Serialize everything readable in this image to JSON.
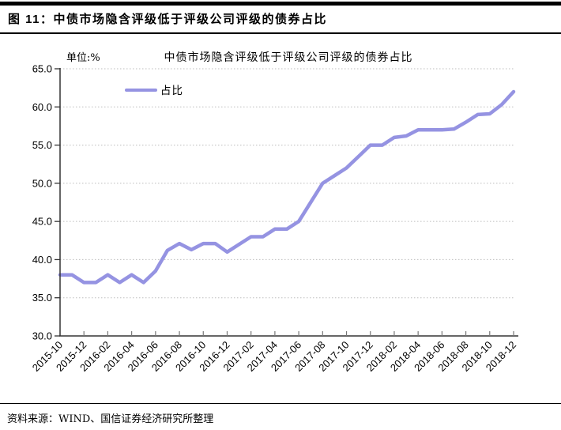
{
  "figure": {
    "header_title": "图 11：中债市场隐含评级低于评级公司评级的债券占比",
    "source_note": "资料来源：WIND、国信证券经济研究所整理"
  },
  "chart_data": {
    "type": "line",
    "title": "中债市场隐含评级低于评级公司评级的债券占比",
    "unit_label": "单位:%",
    "legend": {
      "label": "占比",
      "position": "top-left-inside"
    },
    "series_color": "#9593E2",
    "grid": "horizontal-dotted",
    "grid_color": "#BDBDBD",
    "axis_color": "#333333",
    "ylim": [
      30,
      65
    ],
    "ytick_step": 5,
    "ytick_format": "one-decimal",
    "xtick_label_every": 2,
    "x": [
      "2015-10",
      "2015-11",
      "2015-12",
      "2016-01",
      "2016-02",
      "2016-03",
      "2016-04",
      "2016-05",
      "2016-06",
      "2016-07",
      "2016-08",
      "2016-09",
      "2016-10",
      "2016-11",
      "2016-12",
      "2017-01",
      "2017-02",
      "2017-03",
      "2017-04",
      "2017-05",
      "2017-06",
      "2017-07",
      "2017-08",
      "2017-09",
      "2017-10",
      "2017-11",
      "2017-12",
      "2018-01",
      "2018-02",
      "2018-03",
      "2018-04",
      "2018-05",
      "2018-06",
      "2018-07",
      "2018-08",
      "2018-09",
      "2018-10",
      "2018-11",
      "2018-12"
    ],
    "series": [
      {
        "name": "占比",
        "values": [
          38.0,
          38.0,
          37.0,
          37.0,
          38.0,
          37.0,
          38.0,
          37.0,
          38.5,
          41.2,
          42.1,
          41.3,
          42.1,
          42.1,
          41.0,
          42.0,
          43.0,
          43.0,
          44.0,
          44.0,
          45.0,
          47.5,
          50.0,
          51.0,
          52.0,
          53.5,
          55.0,
          55.0,
          56.0,
          56.2,
          57.0,
          57.0,
          57.0,
          57.1,
          58.0,
          59.0,
          59.1,
          60.3,
          62.0
        ]
      }
    ]
  }
}
